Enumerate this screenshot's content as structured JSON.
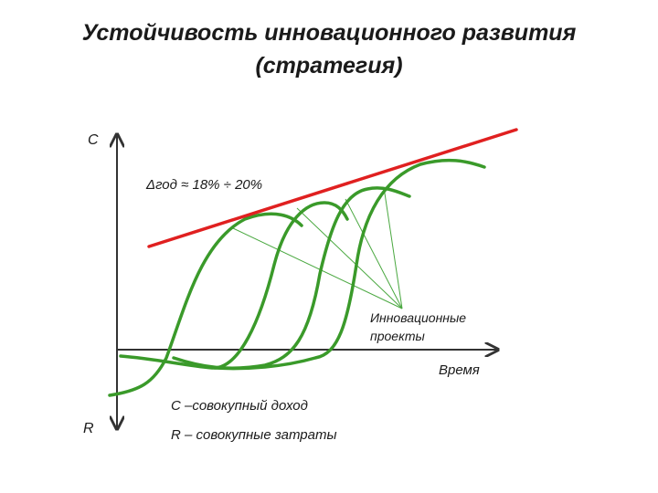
{
  "title": {
    "line1": "Устойчивость инновационного развития",
    "line2": "(стратегия)"
  },
  "axes": {
    "y_top_label": "С",
    "y_bottom_label": "R",
    "x_label": "Время"
  },
  "annotations": {
    "growth_rate": "Δгод ≈ 18% ÷ 20%",
    "projects_line1": "Инновационные",
    "projects_line2": "проекты"
  },
  "legend": {
    "c_line": "С –совокупный доход",
    "r_line": "R – совокупные затраты"
  },
  "colors": {
    "axis": "#333333",
    "trend": "#e02020",
    "curves": "#3a9a2a",
    "pointers": "#4aa840",
    "text": "#1a1a1a"
  }
}
